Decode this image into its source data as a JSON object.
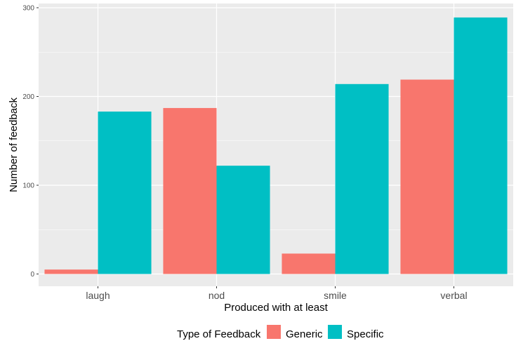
{
  "chart_data": {
    "type": "bar",
    "categories": [
      "laugh",
      "nod",
      "smile",
      "verbal"
    ],
    "series": [
      {
        "name": "Generic",
        "values": [
          5,
          187,
          23,
          219
        ],
        "color": "#F8766D"
      },
      {
        "name": "Specific",
        "values": [
          183,
          122,
          214,
          289
        ],
        "color": "#00BFC4"
      }
    ],
    "xlabel": "Produced with at least",
    "ylabel": "Number of feedback",
    "ylim": [
      0,
      300
    ],
    "yticks": [
      0,
      100,
      200,
      300
    ],
    "legend": {
      "title": "Type of Feedback",
      "position": "bottom"
    },
    "grid": true,
    "panel_background": "#EBEBEB",
    "gridline_color": "#FFFFFF"
  }
}
